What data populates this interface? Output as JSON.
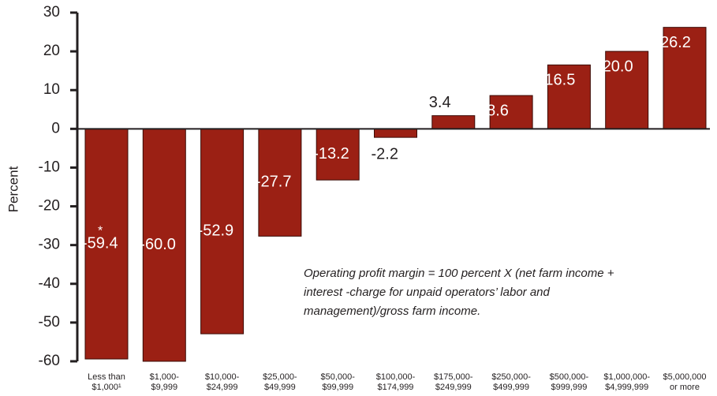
{
  "chart_data": {
    "type": "bar",
    "y_label": "Percent",
    "categories": [
      [
        "Less than",
        "$1,000¹"
      ],
      [
        "$1,000-",
        "$9,999"
      ],
      [
        "$10,000-",
        "$24,999"
      ],
      [
        "$25,000-",
        "$49,999"
      ],
      [
        "$50,000-",
        "$99,999"
      ],
      [
        "$100,000-",
        "$174,999"
      ],
      [
        "$175,000-",
        "$249,999"
      ],
      [
        "$250,000-",
        "$499,999"
      ],
      [
        "$500,000-",
        "$999,999"
      ],
      [
        "$1,000,000-",
        "$4,999,999"
      ],
      [
        "$5,000,000",
        "or more"
      ]
    ],
    "values": [
      -59.4,
      -60.0,
      -52.9,
      -27.7,
      -13.2,
      -2.2,
      3.4,
      8.6,
      16.5,
      20.0,
      26.2
    ],
    "value_labels": [
      "-59.4",
      "-60.0",
      "-52.9",
      "-27.7",
      "-13.2",
      "-2.2",
      "3.4",
      "8.6",
      "16.5",
      "20.0",
      "26.2"
    ],
    "value_label_marker": "*",
    "color": "#9b2014",
    "ylim": [
      -60,
      30
    ],
    "yticks": [
      -60,
      -50,
      -40,
      -30,
      -20,
      -10,
      0,
      10,
      20,
      30
    ],
    "annotation": [
      "Operating profit margin = 100 percent X (net farm income +",
      "interest -charge for unpaid operators’ labor and",
      "management)/gross farm income."
    ]
  }
}
